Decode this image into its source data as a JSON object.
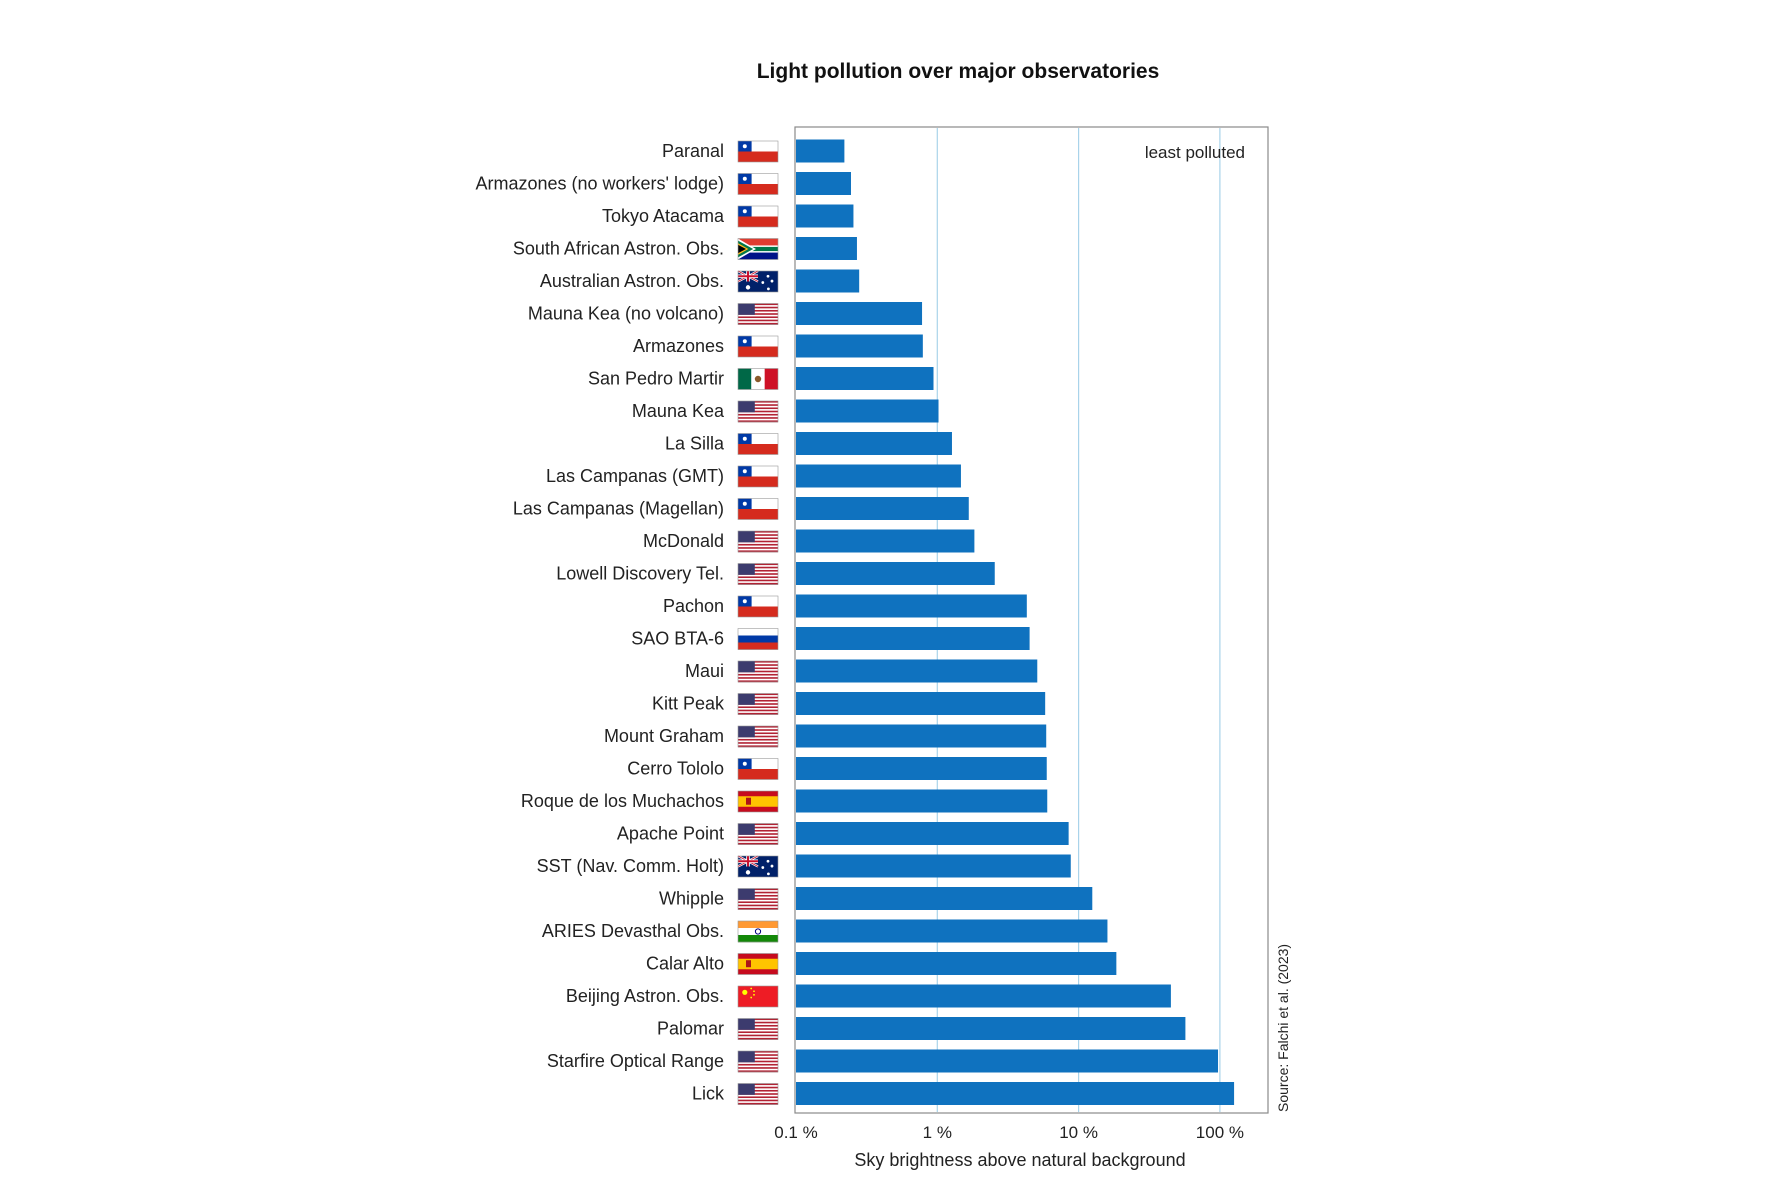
{
  "chart_data": {
    "type": "bar",
    "orientation": "horizontal",
    "title": "Light pollution over major observatories",
    "xlabel": "Sky brightness above natural background",
    "xscale": "log",
    "xlim": [
      0.1,
      300
    ],
    "xticks": [
      {
        "value": 0.1,
        "label": "0.1 %"
      },
      {
        "value": 1,
        "label": "1 %"
      },
      {
        "value": 10,
        "label": "10 %"
      },
      {
        "value": 100,
        "label": "100 %"
      }
    ],
    "grid": "vertical lines at 1 %, 10 %, 100 %",
    "annotation": "least polluted",
    "source": "Source: Falchi et al. (2023)",
    "bar_color": "#0f72bf",
    "categories": [
      {
        "label": "Paranal",
        "country": "chile",
        "value": 0.22
      },
      {
        "label": "Armazones (no workers' lodge)",
        "country": "chile",
        "value": 0.245
      },
      {
        "label": "Tokyo Atacama",
        "country": "chile",
        "value": 0.255
      },
      {
        "label": "South African Astron. Obs.",
        "country": "south-africa",
        "value": 0.27
      },
      {
        "label": "Australian Astron. Obs.",
        "country": "australia",
        "value": 0.28
      },
      {
        "label": "Mauna Kea (no volcano)",
        "country": "usa",
        "value": 0.78
      },
      {
        "label": "Armazones",
        "country": "chile",
        "value": 0.79
      },
      {
        "label": "San Pedro Martir",
        "country": "mexico",
        "value": 0.94
      },
      {
        "label": "Mauna Kea",
        "country": "usa",
        "value": 1.02
      },
      {
        "label": "La Silla",
        "country": "chile",
        "value": 1.27
      },
      {
        "label": "Las Campanas (GMT)",
        "country": "chile",
        "value": 1.47
      },
      {
        "label": "Las Campanas (Magellan)",
        "country": "chile",
        "value": 1.67
      },
      {
        "label": "McDonald",
        "country": "usa",
        "value": 1.83
      },
      {
        "label": "Lowell Discovery Tel.",
        "country": "usa",
        "value": 2.55
      },
      {
        "label": "Pachon",
        "country": "chile",
        "value": 4.3
      },
      {
        "label": "SAO BTA-6",
        "country": "russia",
        "value": 4.5
      },
      {
        "label": "Maui",
        "country": "usa",
        "value": 5.1
      },
      {
        "label": "Kitt Peak",
        "country": "usa",
        "value": 5.8
      },
      {
        "label": "Mount Graham",
        "country": "usa",
        "value": 5.9
      },
      {
        "label": "Cerro Tololo",
        "country": "chile",
        "value": 5.95
      },
      {
        "label": "Roque de los Muchachos",
        "country": "spain",
        "value": 6.0
      },
      {
        "label": "Apache Point",
        "country": "usa",
        "value": 8.5
      },
      {
        "label": "SST (Nav. Comm. Holt)",
        "country": "australia",
        "value": 8.8
      },
      {
        "label": "Whipple",
        "country": "usa",
        "value": 12.5
      },
      {
        "label": "ARIES Devasthal Obs.",
        "country": "india",
        "value": 16
      },
      {
        "label": "Calar Alto",
        "country": "spain",
        "value": 18.5
      },
      {
        "label": "Beijing Astron. Obs.",
        "country": "china",
        "value": 45
      },
      {
        "label": "Palomar",
        "country": "usa",
        "value": 57
      },
      {
        "label": "Starfire Optical Range",
        "country": "usa",
        "value": 97
      },
      {
        "label": "Lick",
        "country": "usa",
        "value": 126
      }
    ]
  }
}
